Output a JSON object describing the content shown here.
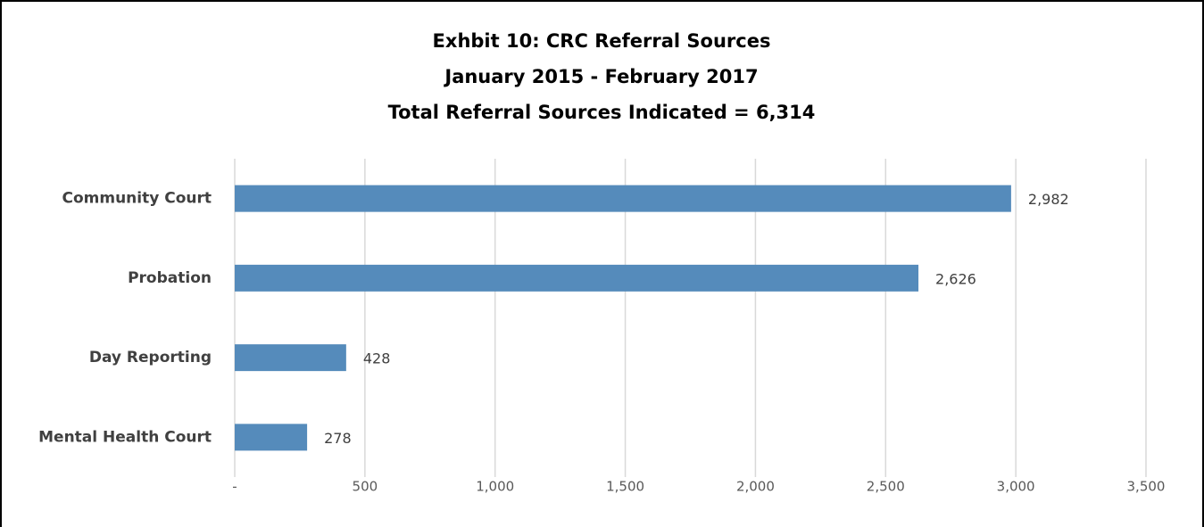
{
  "chart_data": {
    "type": "bar",
    "orientation": "horizontal",
    "title": "Exhbit 10: CRC Referral Sources",
    "subtitle": [
      "January 2015 - February 2017",
      "Total Referral Sources Indicated = 6,314"
    ],
    "categories": [
      "Community Court",
      "Probation",
      "Day Reporting",
      "Mental Health Court"
    ],
    "values": [
      2982,
      2626,
      428,
      278
    ],
    "value_labels": [
      "2,982",
      "2,626",
      "428",
      "278"
    ],
    "color": "#558bbb",
    "xlim": [
      0,
      3500
    ],
    "xticks": [
      {
        "value": 0,
        "label": "-"
      },
      500,
      {
        "value": 1000,
        "label": "1,000"
      },
      {
        "value": 1500,
        "label": "1,500"
      },
      {
        "value": 2000,
        "label": "2,000"
      },
      {
        "value": 2500,
        "label": "2,500"
      },
      {
        "value": 3000,
        "label": "3,000"
      },
      {
        "value": 3500,
        "label": "3,500"
      }
    ],
    "grid": true
  }
}
